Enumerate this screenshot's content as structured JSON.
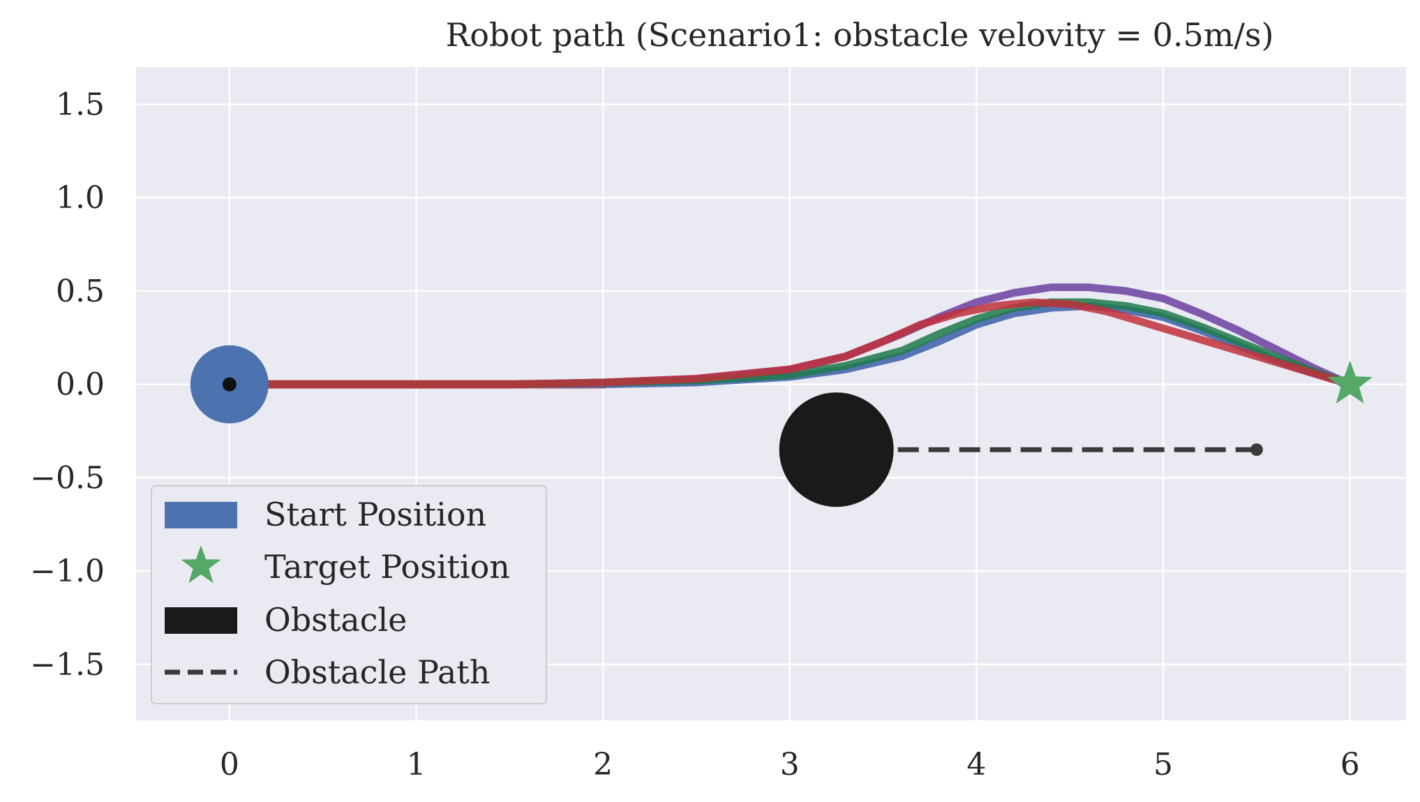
{
  "chart_data": {
    "type": "line",
    "title": "Robot path (Scenario1: obstacle velovity = 0.5m/s)",
    "xlabel": "",
    "ylabel": "",
    "xlim": [
      -0.5,
      6.3
    ],
    "ylim": [
      -1.8,
      1.7
    ],
    "x_ticks": [
      0,
      1,
      2,
      3,
      4,
      5,
      6
    ],
    "y_ticks": [
      1.5,
      1.0,
      0.5,
      0.0,
      -0.5,
      -1.0,
      -1.5
    ],
    "y_tick_labels": [
      "1.5",
      "1.0",
      "0.5",
      "0.0",
      "−0.5",
      "−1.0",
      "−1.5"
    ],
    "grid": true,
    "legend_position": "lower-left",
    "start": {
      "x": 0,
      "y": 0,
      "color": "#4c72b0"
    },
    "target": {
      "x": 6,
      "y": 0,
      "color": "#55a868"
    },
    "obstacle": {
      "x": 3.25,
      "y": -0.35,
      "color": "#1a1a1a"
    },
    "obstacle_path": {
      "x": [
        3.25,
        5.5
      ],
      "y": [
        -0.35,
        -0.35
      ],
      "color": "#3a3a3a"
    },
    "series": [
      {
        "color": "#3a5fa8",
        "x": [
          0,
          0.5,
          1.0,
          1.5,
          2.0,
          2.5,
          3.0,
          3.3,
          3.6,
          3.8,
          4.0,
          4.2,
          4.4,
          4.6,
          4.8,
          5.0,
          5.2,
          5.4,
          5.6,
          5.8,
          6.0
        ],
        "y": [
          0,
          0,
          0,
          0,
          0,
          0.01,
          0.04,
          0.08,
          0.15,
          0.23,
          0.32,
          0.38,
          0.41,
          0.42,
          0.4,
          0.36,
          0.29,
          0.21,
          0.13,
          0.06,
          0
        ]
      },
      {
        "color": "#6b3fa0",
        "x": [
          0,
          0.5,
          1.0,
          1.5,
          2.0,
          2.5,
          3.0,
          3.3,
          3.6,
          3.8,
          4.0,
          4.2,
          4.4,
          4.6,
          4.8,
          5.0,
          5.2,
          5.4,
          5.6,
          5.8,
          6.0
        ],
        "y": [
          0,
          0,
          0,
          0,
          0.01,
          0.03,
          0.08,
          0.15,
          0.27,
          0.36,
          0.44,
          0.49,
          0.52,
          0.52,
          0.5,
          0.46,
          0.38,
          0.29,
          0.19,
          0.09,
          0
        ]
      },
      {
        "color": "#1e7a4a",
        "x": [
          0,
          0.5,
          1.0,
          1.5,
          2.0,
          2.5,
          3.0,
          3.3,
          3.6,
          3.8,
          4.0,
          4.2,
          4.4,
          4.6,
          4.8,
          5.0,
          5.2,
          5.4,
          5.6,
          5.8,
          6.0
        ],
        "y": [
          0,
          0,
          0,
          0,
          0.01,
          0.02,
          0.05,
          0.1,
          0.18,
          0.27,
          0.35,
          0.41,
          0.44,
          0.44,
          0.42,
          0.38,
          0.31,
          0.23,
          0.15,
          0.07,
          0
        ]
      },
      {
        "color": "#c0303a",
        "x": [
          0,
          0.5,
          1.0,
          1.5,
          2.0,
          2.5,
          3.0,
          3.3,
          3.5,
          3.7,
          3.9,
          4.1,
          4.3,
          4.5,
          4.7,
          4.9,
          5.1,
          5.3,
          5.5,
          5.7,
          6.0
        ],
        "y": [
          0,
          0,
          0,
          0,
          0.01,
          0.03,
          0.08,
          0.15,
          0.23,
          0.32,
          0.38,
          0.42,
          0.44,
          0.43,
          0.39,
          0.33,
          0.27,
          0.21,
          0.15,
          0.09,
          0
        ]
      }
    ],
    "legend": {
      "start_label": "Start Position",
      "target_label": "Target Position",
      "obstacle_label": "Obstacle",
      "obstacle_path_label": "Obstacle Path"
    }
  }
}
